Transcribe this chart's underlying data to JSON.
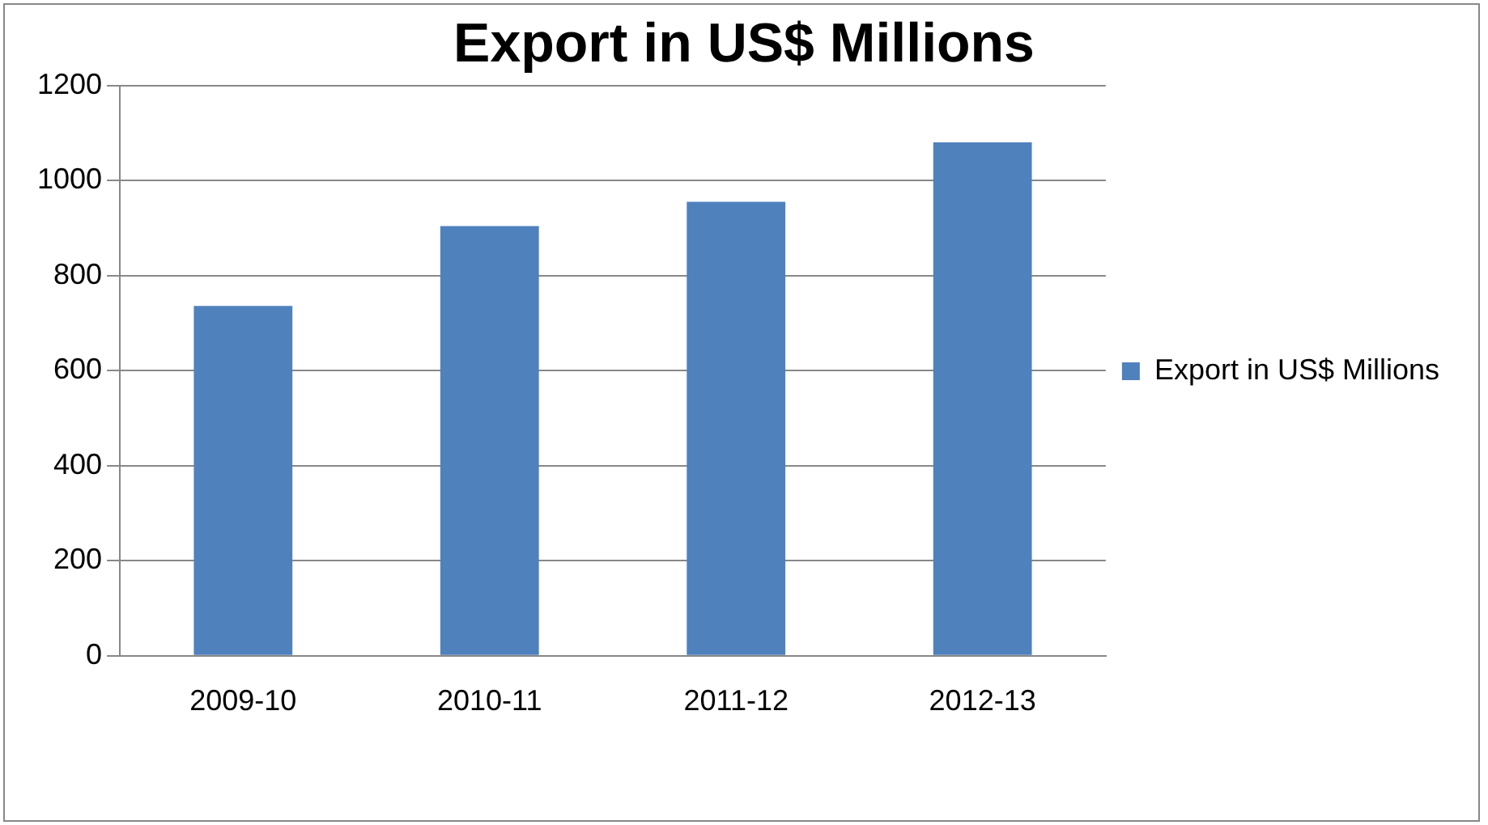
{
  "chart_data": {
    "type": "bar",
    "title": "Export in US$ Millions",
    "categories": [
      "2009-10",
      "2010-11",
      "2011-12",
      "2012-13"
    ],
    "series": [
      {
        "name": "Export in US$ Millions",
        "color": "#4f81bd",
        "values": [
          736,
          904,
          955,
          1080
        ]
      }
    ],
    "ylim": [
      0,
      1200
    ],
    "yticks": [
      0,
      200,
      400,
      600,
      800,
      1000,
      1200
    ],
    "grid": "y",
    "legend": "right"
  }
}
